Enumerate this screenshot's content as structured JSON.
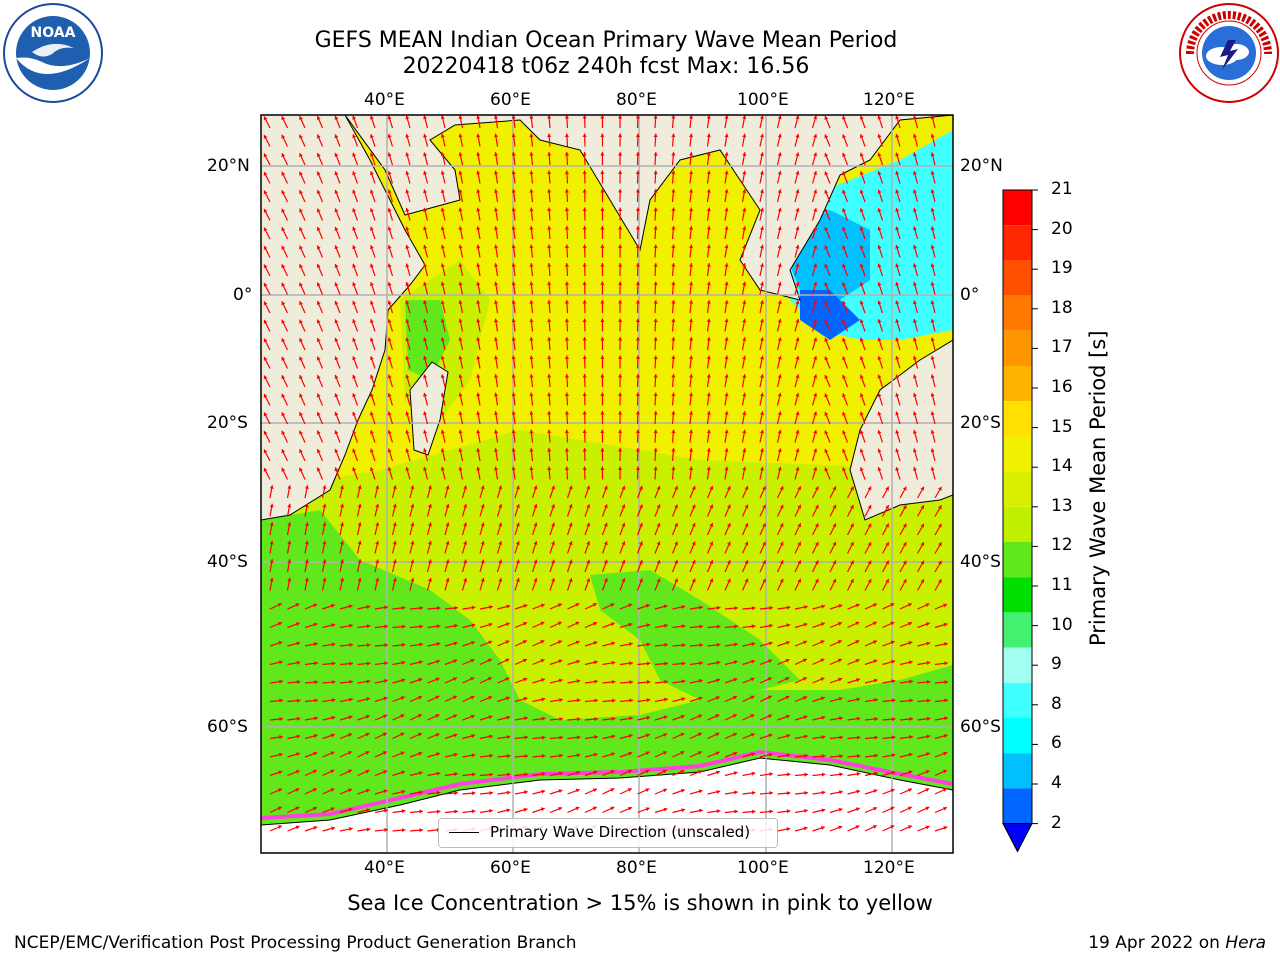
{
  "header": {
    "title_line1": "GEFS MEAN Indian Ocean Primary Wave Mean Period",
    "title_line2": "20220418 t06z 240h fcst   Max: 16.56"
  },
  "logos": {
    "left": "NOAA",
    "left_ring_text": "NATIONAL OCEANIC AND ATMOSPHERIC ADMINISTRATION · U.S. DEPARTMENT OF COMMERCE",
    "right_ring_text": "NATIONAL WEATHER SERVICE"
  },
  "map": {
    "lon_labels": [
      "40°E",
      "60°E",
      "80°E",
      "100°E",
      "120°E"
    ],
    "lat_labels": [
      "20°N",
      "0°",
      "20°S",
      "40°S",
      "60°S"
    ],
    "land_color": "#efecdc",
    "ocean_main_color": "#f0f000",
    "ocean_south_color": "#c8f000",
    "ocean_southern_color": "#60e81c",
    "arrow_color": "#ff0000"
  },
  "legend": {
    "line_label": "Primary Wave Direction (unscaled)"
  },
  "colorbar": {
    "label": "Primary Wave Mean Period [s]",
    "ticks": [
      "21",
      "20",
      "19",
      "18",
      "17",
      "16",
      "15",
      "14",
      "13",
      "12",
      "11",
      "10",
      "9",
      "8",
      "6",
      "4",
      "2"
    ],
    "colors": [
      "#ff0000",
      "#ff2800",
      "#ff5000",
      "#ff7800",
      "#ff9600",
      "#ffb400",
      "#ffe000",
      "#f0f000",
      "#d8f000",
      "#c0f000",
      "#60e81c",
      "#00e000",
      "#44f070",
      "#a0fff0",
      "#40ffff",
      "#00ffff",
      "#00c0ff",
      "#0066ff"
    ],
    "extend_color": "#0000ff"
  },
  "note": "Sea Ice Concentration > 15% is shown in pink to yellow",
  "footer": {
    "left": "NCEP/EMC/Verification Post Processing Product Generation Branch",
    "right_date": "19 Apr 2022 on",
    "right_machine": "Hera"
  }
}
